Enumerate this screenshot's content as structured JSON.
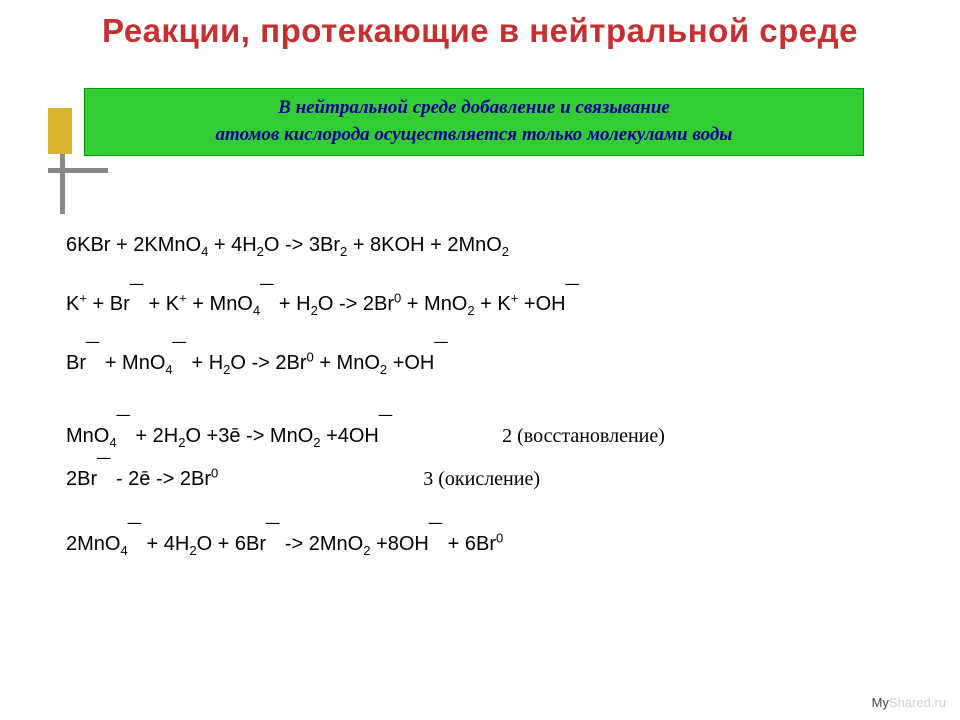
{
  "title": "Реакции, протекающие в нейтральной  среде",
  "note": {
    "line1": "В нейтральной среде добавление и связывание",
    "line2": "атомов кислорода осуществляется  только молекулами воды"
  },
  "equations": {
    "eq1": "6KBr + 2KMnO{sub4} + 4H{sub2}O -> 3Br{sub2} + 8KOH + 2MnO{sub2}",
    "eq2": " K{sup+} + Br{neg} + K{sup+} + MnO{sub4}{neg} + H{sub2}O -> 2Br{sup0} + MnO{sub2} + K{sup+} +OH{neg}",
    "eq3": "Br{neg} + MnO{sub4}{neg} + H{sub2}O   -> 2Br{sup0} + MnO{sub2} +OH{neg}",
    "half1": "MnO{sub4}{neg} + 2H{sub2}O +3ē -> MnO{sub2} +4OH{neg}",
    "half1_ann": "2 (восстановление)",
    "half2": "2Br{neg} - 2ē -> 2Br{sup0}",
    "half2_ann": "3 (окисление)",
    "sum": "2MnO{sub4}{neg} + 4H{sub2}O + 6Br{neg} -> 2MnO{sub2} +8OH{neg} + 6Br{sup0}"
  },
  "watermark": {
    "my": "My",
    "shared": "Shared.ru"
  },
  "colors": {
    "title": "#c53030",
    "note_bg": "#33cc33",
    "note_text": "#000099",
    "accent_bar": "#d9b32b"
  }
}
